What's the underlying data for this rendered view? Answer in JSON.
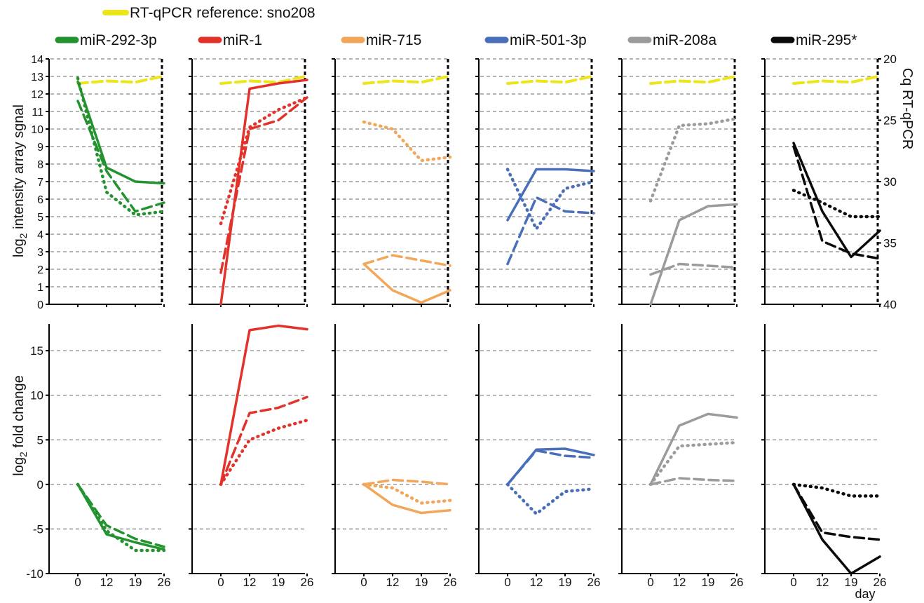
{
  "legend": {
    "reference": {
      "label": "RT-qPCR reference: sno208",
      "color": "#ECE51A"
    },
    "mirnas": [
      {
        "label": "miR-292-3p",
        "color": "#23932F"
      },
      {
        "label": "miR-1",
        "color": "#E3322A"
      },
      {
        "label": "miR-715",
        "color": "#F2A65A"
      },
      {
        "label": "miR-501-3p",
        "color": "#4A6FBA"
      },
      {
        "label": "miR-208a",
        "color": "#9B9B9B"
      },
      {
        "label": "miR-295*",
        "color": "#0A0A0A"
      }
    ]
  },
  "labels": {
    "top_ylabel": "log",
    "top_ylabel_sub": "2",
    "top_ylabel_rest": " intensity array sgnal",
    "bottom_ylabel": "log",
    "bottom_ylabel_sub": "2",
    "bottom_ylabel_rest": " fold change",
    "right_ylabel": "Cq RT-qPCR",
    "xlabel": "day"
  },
  "chart_data": [
    {
      "type": "line",
      "panel": "top",
      "ylabel": "log2 intensity array sgnal",
      "y_right_label": "Cq RT-qPCR",
      "x": [
        0,
        12,
        19,
        26
      ],
      "x_tick_labels": [
        "0",
        "12",
        "19",
        "26"
      ],
      "ylim": [
        0,
        14
      ],
      "yticks": [
        0,
        1,
        2,
        3,
        4,
        5,
        6,
        7,
        8,
        9,
        10,
        11,
        12,
        13,
        14
      ],
      "right_ylim": [
        40,
        20
      ],
      "right_ticks": [
        20,
        25,
        30,
        35,
        40
      ],
      "grid": "dashed horizontal",
      "reference": {
        "name": "RT-qPCR reference: sno208",
        "color": "#ECE51A",
        "cq": [
          22.0,
          21.8,
          21.9,
          21.4
        ]
      },
      "series": [
        {
          "name": "miR-292-3p",
          "color": "#23932F",
          "solid": [
            12.7,
            7.8,
            7.0,
            6.9
          ],
          "dashed": [
            11.6,
            7.6,
            5.3,
            5.8
          ],
          "dotted": [
            12.9,
            6.4,
            5.1,
            5.3
          ]
        },
        {
          "name": "miR-1",
          "color": "#E3322A",
          "solid": [
            0.0,
            12.3,
            12.6,
            12.8
          ],
          "dashed": [
            1.8,
            10.0,
            10.5,
            11.8
          ],
          "dotted": [
            4.6,
            10.1,
            11.1,
            11.8
          ]
        },
        {
          "name": "miR-715",
          "color": "#F2A65A",
          "solid": [
            2.3,
            0.8,
            0.1,
            0.8
          ],
          "dashed": [
            2.3,
            2.8,
            2.5,
            2.2
          ],
          "dotted": [
            10.4,
            10.0,
            8.2,
            8.4
          ]
        },
        {
          "name": "miR-501-3p",
          "color": "#4A6FBA",
          "solid": [
            4.8,
            7.7,
            7.7,
            7.6
          ],
          "dashed": [
            2.3,
            6.1,
            5.3,
            5.2
          ],
          "dotted": [
            7.7,
            4.3,
            6.6,
            7.0
          ]
        },
        {
          "name": "miR-208a",
          "color": "#9B9B9B",
          "solid": [
            0.0,
            4.8,
            5.6,
            5.7
          ],
          "dashed": [
            1.7,
            2.3,
            2.2,
            2.1
          ],
          "dotted": [
            5.9,
            10.2,
            10.3,
            10.6
          ]
        },
        {
          "name": "miR-295*",
          "color": "#0A0A0A",
          "solid": [
            9.2,
            5.3,
            2.7,
            4.2
          ],
          "dashed": [
            9.0,
            3.6,
            2.9,
            2.6
          ],
          "dotted": [
            6.5,
            5.8,
            5.0,
            5.0
          ]
        }
      ]
    },
    {
      "type": "line",
      "panel": "bottom",
      "ylabel": "log2 fold change",
      "xlabel": "day",
      "x": [
        0,
        12,
        19,
        26
      ],
      "x_tick_labels": [
        "0",
        "12",
        "19",
        "26"
      ],
      "ylim": [
        -10,
        18
      ],
      "yticks": [
        -10,
        -5,
        0,
        5,
        10,
        15
      ],
      "grid": "dashed horizontal",
      "series": [
        {
          "name": "miR-292-3p",
          "color": "#23932F",
          "solid": [
            0,
            -5.6,
            -6.5,
            -7.3
          ],
          "dashed": [
            0,
            -4.6,
            -6.1,
            -7.0
          ],
          "dotted": [
            0,
            -5.2,
            -7.4,
            -7.4
          ]
        },
        {
          "name": "miR-1",
          "color": "#E3322A",
          "solid": [
            0,
            17.3,
            17.8,
            17.4
          ],
          "dashed": [
            0,
            8.0,
            8.6,
            9.8
          ],
          "dotted": [
            0,
            5.0,
            6.3,
            7.2
          ]
        },
        {
          "name": "miR-715",
          "color": "#F2A65A",
          "solid": [
            0,
            -2.3,
            -3.2,
            -2.9
          ],
          "dashed": [
            0,
            0.5,
            0.3,
            0.0
          ],
          "dotted": [
            0,
            -0.4,
            -2.1,
            -1.8
          ]
        },
        {
          "name": "miR-501-3p",
          "color": "#4A6FBA",
          "solid": [
            0,
            3.9,
            4.0,
            3.3
          ],
          "dashed": [
            0,
            3.8,
            3.2,
            3.0
          ],
          "dotted": [
            0,
            -3.3,
            -0.8,
            -0.5
          ]
        },
        {
          "name": "miR-208a",
          "color": "#9B9B9B",
          "solid": [
            0,
            6.6,
            7.9,
            7.5
          ],
          "dashed": [
            0,
            0.7,
            0.5,
            0.4
          ],
          "dotted": [
            0,
            4.3,
            4.5,
            4.7
          ]
        },
        {
          "name": "miR-295*",
          "color": "#0A0A0A",
          "solid": [
            0,
            -6.2,
            -10.0,
            -8.1
          ],
          "dashed": [
            0,
            -5.4,
            -5.9,
            -6.2
          ],
          "dotted": [
            0,
            -0.4,
            -1.3,
            -1.3
          ]
        }
      ]
    }
  ]
}
